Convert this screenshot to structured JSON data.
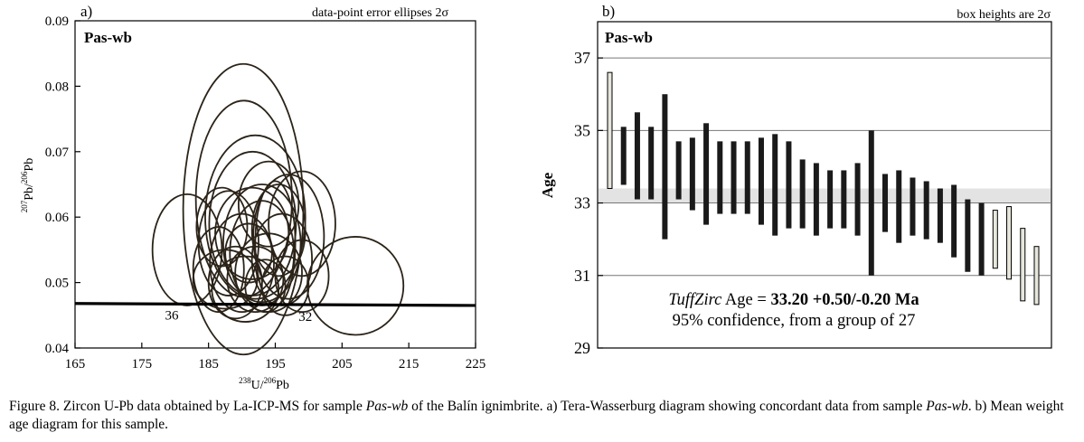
{
  "chart_data": [
    {
      "type": "scatter",
      "panel_label": "a)",
      "note": "data-point error ellipses 2σ",
      "sample_label": "Pas-wb",
      "xlabel": "238U/206Pb",
      "ylabel": "207Pb/206Pb",
      "xlim": [
        165,
        225
      ],
      "ylim": [
        0.04,
        0.09
      ],
      "x_ticks": [
        "165",
        "175",
        "185",
        "195",
        "205",
        "215",
        "225"
      ],
      "y_ticks": [
        "0.04",
        "0.05",
        "0.06",
        "0.07",
        "0.08",
        "0.09"
      ],
      "concordia_labels": [
        "36",
        "32"
      ],
      "concordia": {
        "x": [
          165,
          225
        ],
        "y": [
          0.0468,
          0.0465
        ]
      },
      "concordia_label_points": [
        {
          "x": 179.5,
          "y": 0.0463
        },
        {
          "x": 199.5,
          "y": 0.0461
        }
      ],
      "ellipses": [
        {
          "cx": 190.2,
          "cy": 0.0612,
          "rx": 9.0,
          "ry": 0.0222
        },
        {
          "cx": 190.3,
          "cy": 0.0628,
          "rx": 7.2,
          "ry": 0.015
        },
        {
          "cx": 192.0,
          "cy": 0.06,
          "rx": 7.5,
          "ry": 0.0125
        },
        {
          "cx": 191.6,
          "cy": 0.059,
          "rx": 6.5,
          "ry": 0.011
        },
        {
          "cx": 181.8,
          "cy": 0.055,
          "rx": 5.2,
          "ry": 0.0085
        },
        {
          "cx": 207.0,
          "cy": 0.0495,
          "rx": 7.2,
          "ry": 0.0075
        },
        {
          "cx": 199.0,
          "cy": 0.059,
          "rx": 5.0,
          "ry": 0.008
        },
        {
          "cx": 197.0,
          "cy": 0.057,
          "rx": 5.3,
          "ry": 0.0095
        },
        {
          "cx": 188.0,
          "cy": 0.056,
          "rx": 4.5,
          "ry": 0.008
        },
        {
          "cx": 193.0,
          "cy": 0.0545,
          "rx": 4.8,
          "ry": 0.008
        },
        {
          "cx": 196.0,
          "cy": 0.0535,
          "rx": 4.5,
          "ry": 0.007
        },
        {
          "cx": 190.0,
          "cy": 0.053,
          "rx": 4.8,
          "ry": 0.0075
        },
        {
          "cx": 186.5,
          "cy": 0.052,
          "rx": 3.8,
          "ry": 0.0065
        },
        {
          "cx": 194.0,
          "cy": 0.0515,
          "rx": 5.0,
          "ry": 0.006
        },
        {
          "cx": 192.0,
          "cy": 0.0505,
          "rx": 4.2,
          "ry": 0.005
        },
        {
          "cx": 199.0,
          "cy": 0.051,
          "rx": 4.0,
          "ry": 0.0055
        },
        {
          "cx": 189.0,
          "cy": 0.05,
          "rx": 4.0,
          "ry": 0.0055
        },
        {
          "cx": 195.0,
          "cy": 0.056,
          "rx": 3.0,
          "ry": 0.0095
        },
        {
          "cx": 191.5,
          "cy": 0.0575,
          "rx": 5.5,
          "ry": 0.007
        },
        {
          "cx": 195.5,
          "cy": 0.058,
          "rx": 4.0,
          "ry": 0.007
        },
        {
          "cx": 190.5,
          "cy": 0.049,
          "rx": 5.0,
          "ry": 0.005
        },
        {
          "cx": 196.5,
          "cy": 0.0495,
          "rx": 3.5,
          "ry": 0.0045
        },
        {
          "cx": 187.5,
          "cy": 0.0505,
          "rx": 4.8,
          "ry": 0.0045
        },
        {
          "cx": 193.5,
          "cy": 0.0495,
          "rx": 3.0,
          "ry": 0.004
        },
        {
          "cx": 191.0,
          "cy": 0.0545,
          "rx": 3.5,
          "ry": 0.0045
        },
        {
          "cx": 193.0,
          "cy": 0.056,
          "rx": 5.8,
          "ry": 0.009
        },
        {
          "cx": 187.0,
          "cy": 0.0585,
          "rx": 3.8,
          "ry": 0.006
        },
        {
          "cx": 194.0,
          "cy": 0.062,
          "rx": 4.5,
          "ry": 0.0065
        }
      ]
    },
    {
      "type": "bar",
      "panel_label": "b)",
      "note": "box heights are 2σ",
      "sample_label": "Pas-wb",
      "ylabel": "Age",
      "ylim": [
        29,
        38
      ],
      "y_ticks": [
        "29",
        "31",
        "33",
        "35",
        "37"
      ],
      "grid_lines": [
        31,
        33,
        35,
        37
      ],
      "band": [
        33.0,
        33.4
      ],
      "boxes": [
        {
          "lo": 33.4,
          "hi": 36.6,
          "included": false
        },
        {
          "lo": 33.5,
          "hi": 35.1,
          "included": true
        },
        {
          "lo": 33.1,
          "hi": 35.5,
          "included": true
        },
        {
          "lo": 33.1,
          "hi": 35.1,
          "included": true
        },
        {
          "lo": 32.0,
          "hi": 36.0,
          "included": true
        },
        {
          "lo": 33.1,
          "hi": 34.7,
          "included": true
        },
        {
          "lo": 32.8,
          "hi": 34.8,
          "included": true
        },
        {
          "lo": 32.4,
          "hi": 35.2,
          "included": true
        },
        {
          "lo": 32.7,
          "hi": 34.7,
          "included": true
        },
        {
          "lo": 32.7,
          "hi": 34.7,
          "included": true
        },
        {
          "lo": 32.7,
          "hi": 34.7,
          "included": true
        },
        {
          "lo": 32.4,
          "hi": 34.8,
          "included": true
        },
        {
          "lo": 32.1,
          "hi": 34.9,
          "included": true
        },
        {
          "lo": 32.3,
          "hi": 34.7,
          "included": true
        },
        {
          "lo": 32.3,
          "hi": 34.2,
          "included": true
        },
        {
          "lo": 32.1,
          "hi": 34.1,
          "included": true
        },
        {
          "lo": 32.3,
          "hi": 33.9,
          "included": true
        },
        {
          "lo": 32.3,
          "hi": 33.9,
          "included": true
        },
        {
          "lo": 32.1,
          "hi": 34.1,
          "included": true
        },
        {
          "lo": 31.0,
          "hi": 35.0,
          "included": true
        },
        {
          "lo": 32.2,
          "hi": 33.8,
          "included": true
        },
        {
          "lo": 31.9,
          "hi": 33.9,
          "included": true
        },
        {
          "lo": 32.1,
          "hi": 33.7,
          "included": true
        },
        {
          "lo": 32.0,
          "hi": 33.6,
          "included": true
        },
        {
          "lo": 31.9,
          "hi": 33.4,
          "included": true
        },
        {
          "lo": 31.5,
          "hi": 33.5,
          "included": true
        },
        {
          "lo": 31.1,
          "hi": 33.1,
          "included": true
        },
        {
          "lo": 31.0,
          "hi": 33.0,
          "included": true
        },
        {
          "lo": 31.2,
          "hi": 32.8,
          "included": false
        },
        {
          "lo": 30.9,
          "hi": 32.9,
          "included": false
        },
        {
          "lo": 30.3,
          "hi": 32.3,
          "included": false
        },
        {
          "lo": 30.2,
          "hi": 31.8,
          "included": false
        }
      ],
      "result_prefix": "TuffZirc",
      "result_mid": " Age = ",
      "result_value": "33.20 +0.50/-0.20 Ma",
      "result_line2": "95% confidence, from a group of 27"
    }
  ],
  "caption": {
    "t1": "Figure 8. Zircon U-Pb data obtained by La-ICP-MS for sample ",
    "s1": "Pas-wb",
    "t2": " of the Balín ignimbrite. a) Tera-Wasserburg diagram showing concordant data from sample ",
    "s2": "Pas-wb",
    "t3": ". b) Mean weight age diagram for this sample."
  },
  "colors": {
    "ellipse": "#2b2318",
    "box_included": "#1a1a1a",
    "box_excluded": "#e6e6dc",
    "band": "#e3e3e3",
    "grid": "#777777"
  }
}
